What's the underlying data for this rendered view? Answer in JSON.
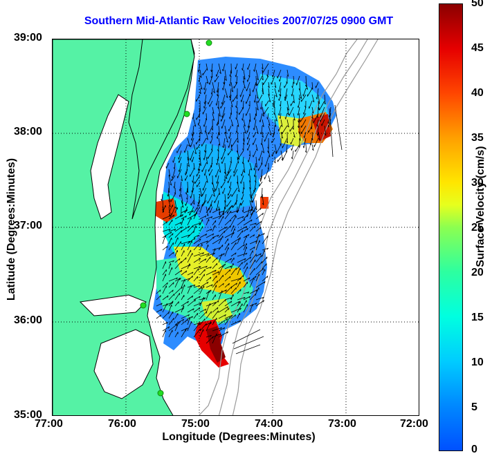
{
  "title": "Southern Mid-Atlantic Raw Velocities 2007/07/25 0900 GMT",
  "x_axis": {
    "label": "Longitude (Degrees:Minutes)",
    "ticks": [
      "77:00",
      "76:00",
      "75:00",
      "74:00",
      "73:00",
      "72:00"
    ]
  },
  "y_axis": {
    "label": "Latitude (Degrees:Minutes)",
    "ticks": [
      "39:00",
      "38:00",
      "37:00",
      "36:00",
      "35:00"
    ]
  },
  "colorbar": {
    "label": "Surface Velocity (cm/s)",
    "ticks": [
      "50",
      "45",
      "40",
      "35",
      "30",
      "25",
      "20",
      "15",
      "10",
      "5",
      "0"
    ],
    "range": [
      0,
      50
    ]
  },
  "colors": {
    "land": "#55f2a5",
    "coast_line": "#000000",
    "bathymetry": "#999999",
    "station": "#22dd22",
    "grid": "#000000",
    "title": "#0000ff"
  },
  "map": {
    "lon_range": [
      -77,
      -72
    ],
    "lat_range": [
      35,
      39
    ],
    "grid": "dotted"
  }
}
